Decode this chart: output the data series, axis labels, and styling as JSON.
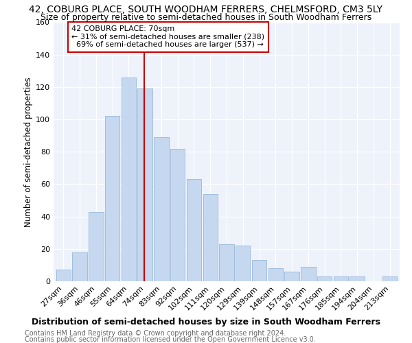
{
  "title": "42, COBURG PLACE, SOUTH WOODHAM FERRERS, CHELMSFORD, CM3 5LY",
  "subtitle": "Size of property relative to semi-detached houses in South Woodham Ferrers",
  "xlabel": "Distribution of semi-detached houses by size in South Woodham Ferrers",
  "ylabel": "Number of semi-detached properties",
  "footnote1": "Contains HM Land Registry data © Crown copyright and database right 2024.",
  "footnote2": "Contains public sector information licensed under the Open Government Licence v3.0.",
  "bar_labels": [
    "27sqm",
    "36sqm",
    "46sqm",
    "55sqm",
    "64sqm",
    "74sqm",
    "83sqm",
    "92sqm",
    "102sqm",
    "111sqm",
    "120sqm",
    "129sqm",
    "139sqm",
    "148sqm",
    "157sqm",
    "167sqm",
    "176sqm",
    "185sqm",
    "194sqm",
    "204sqm",
    "213sqm"
  ],
  "bar_values": [
    7,
    18,
    43,
    102,
    126,
    119,
    89,
    82,
    63,
    54,
    23,
    22,
    13,
    8,
    6,
    9,
    3,
    3,
    3,
    0,
    3
  ],
  "bar_color": "#c5d8f0",
  "bar_edge_color": "#a0bedd",
  "vline_x": 4.97,
  "vline_color": "#cc0000",
  "annotation_line1": "42 COBURG PLACE: 70sqm",
  "annotation_line2": "← 31% of semi-detached houses are smaller (238)",
  "annotation_line3": "  69% of semi-detached houses are larger (537) →",
  "annotation_box_color": "#ffffff",
  "annotation_box_edge": "#cc0000",
  "ylim": [
    0,
    160
  ],
  "yticks": [
    0,
    20,
    40,
    60,
    80,
    100,
    120,
    140,
    160
  ],
  "bg_color": "#edf2fb",
  "title_fontsize": 10,
  "subtitle_fontsize": 9,
  "xlabel_fontsize": 9,
  "ylabel_fontsize": 8.5,
  "tick_fontsize": 8,
  "footnote_fontsize": 7
}
